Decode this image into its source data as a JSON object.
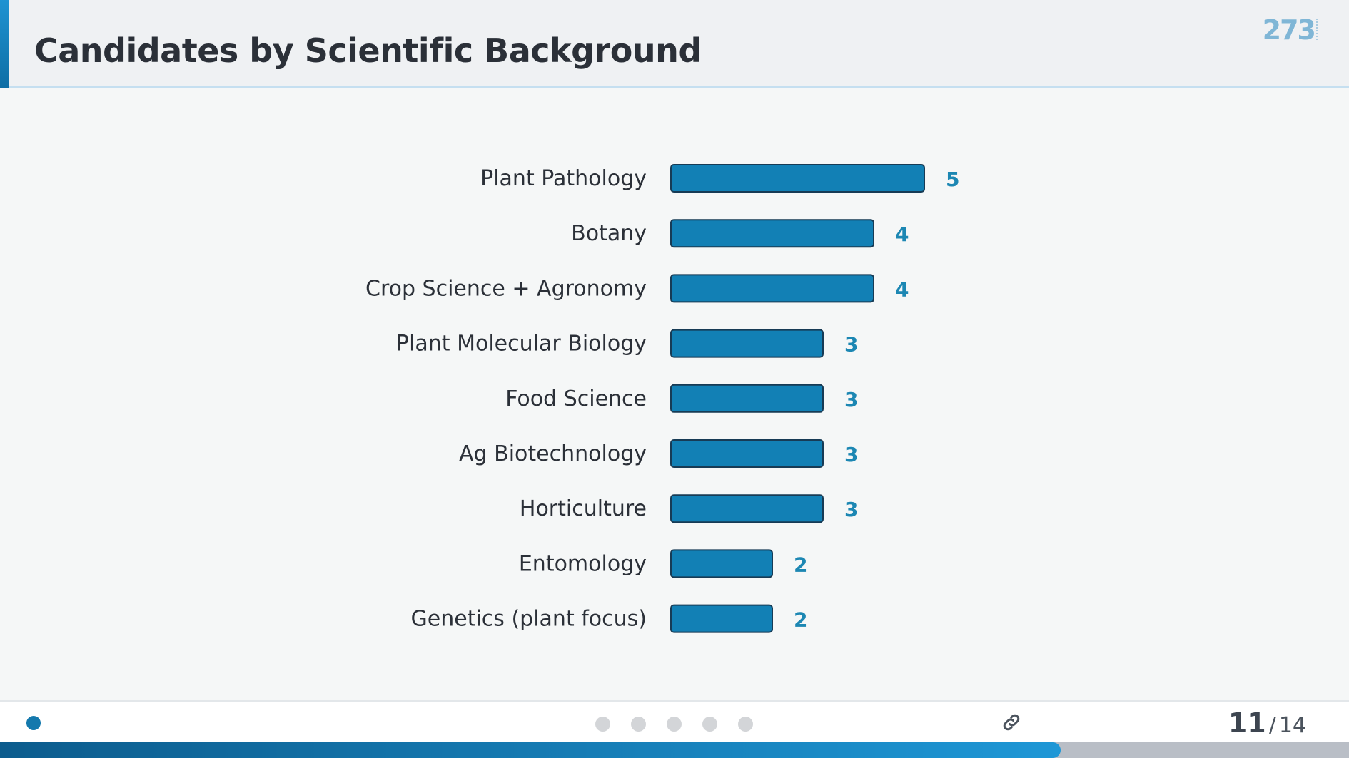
{
  "header": {
    "title": "Candidates by Scientific Background",
    "logo_text": "273"
  },
  "colors": {
    "accent": "#1479ad",
    "bar_fill": "#1280b5",
    "bar_stroke": "#173b55",
    "value_label": "#1c87b3"
  },
  "chart_data": {
    "type": "bar",
    "orientation": "horizontal",
    "categories": [
      "Plant Pathology",
      "Botany",
      "Crop Science + Agronomy",
      "Plant Molecular Biology",
      "Food Science",
      "Ag Biotechnology",
      "Horticulture",
      "Entomology",
      "Genetics (plant focus)"
    ],
    "values": [
      5,
      4,
      4,
      3,
      3,
      3,
      3,
      2,
      2
    ],
    "data_labels": [
      "5",
      "4",
      "4",
      "3",
      "3",
      "3",
      "3",
      "2",
      "2"
    ],
    "xlim": [
      0,
      5
    ],
    "grid": false,
    "legend": "none"
  },
  "footer": {
    "nav_dots": 5,
    "link_icon": "link-icon",
    "page_current": "11",
    "page_separator": "/",
    "page_total": "14",
    "progress": 0.786
  }
}
